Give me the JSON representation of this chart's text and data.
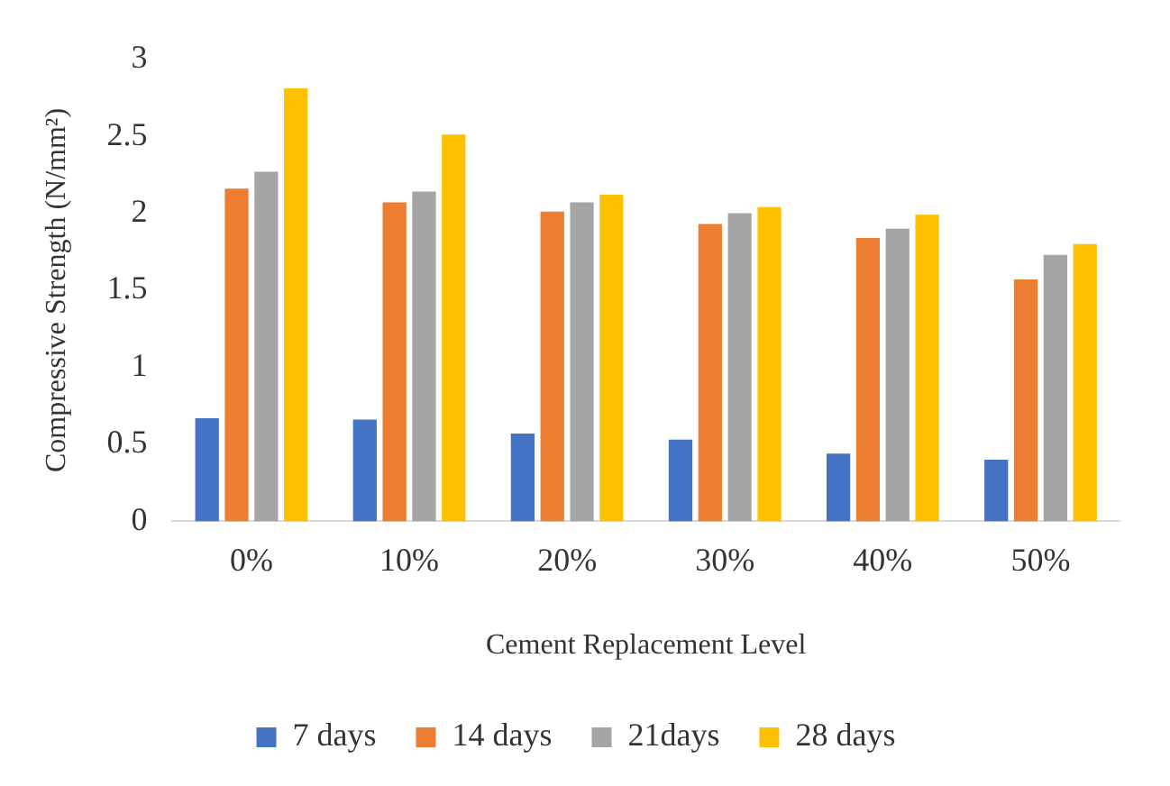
{
  "chart_data": {
    "type": "bar",
    "xlabel": "Cement Replacement Level",
    "ylabel": "Compressive Strength (N/mm²)",
    "categories": [
      "0%",
      "10%",
      "20%",
      "30%",
      "40%",
      "50%"
    ],
    "series": [
      {
        "name": "7 days",
        "color": "#4472c4",
        "values": [
          0.67,
          0.66,
          0.57,
          0.53,
          0.44,
          0.4
        ]
      },
      {
        "name": "14 days",
        "color": "#ed7d31",
        "values": [
          2.16,
          2.07,
          2.01,
          1.93,
          1.84,
          1.57
        ]
      },
      {
        "name": "21days",
        "color": "#a5a5a5",
        "values": [
          2.27,
          2.14,
          2.07,
          2.0,
          1.9,
          1.73
        ]
      },
      {
        "name": "28 days",
        "color": "#ffc000",
        "values": [
          2.81,
          2.51,
          2.12,
          2.04,
          1.99,
          1.8
        ]
      }
    ],
    "ylim": [
      0,
      3
    ],
    "yticks": [
      0,
      0.5,
      1,
      1.5,
      2,
      2.5,
      3
    ],
    "grid": false,
    "legend": "bottom"
  }
}
